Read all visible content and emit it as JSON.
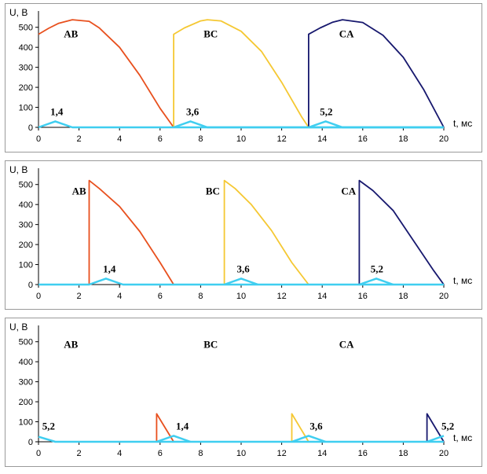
{
  "chart_data": [
    {
      "type": "line",
      "ylabel": "U, В",
      "xlabel": "t, мс",
      "xlim": [
        0,
        20
      ],
      "ylim": [
        0,
        550
      ],
      "xticks": [
        "0",
        "2",
        "4",
        "6",
        "8",
        "10",
        "12",
        "14",
        "16",
        "18",
        "20"
      ],
      "yticks": [
        "0",
        "100",
        "200",
        "300",
        "400",
        "500"
      ],
      "grid": false,
      "series": [
        {
          "name": "AB",
          "color": "#e8501e",
          "x": [
            0,
            0.5,
            1,
            1.67,
            2.5,
            3,
            4,
            5,
            6,
            6.67
          ],
          "y": [
            465,
            495,
            520,
            538,
            530,
            497,
            400,
            260,
            95,
            0
          ]
        },
        {
          "name": "BC",
          "color": "#f5c833",
          "x": [
            6.67,
            6.67,
            7.2,
            8,
            8.33,
            9,
            10,
            11,
            12,
            13,
            13.33
          ],
          "y": [
            0,
            465,
            497,
            532,
            538,
            532,
            480,
            380,
            225,
            50,
            0
          ]
        },
        {
          "name": "CA",
          "color": "#17186e",
          "x": [
            13.33,
            13.33,
            13.9,
            14.5,
            15,
            16,
            17,
            18,
            19,
            20
          ],
          "y": [
            0,
            465,
            497,
            525,
            538,
            524,
            460,
            350,
            190,
            0
          ]
        },
        {
          "name": "",
          "color": "#3fcef0",
          "x": [
            0,
            0.83,
            1.67,
            2,
            20
          ],
          "y": [
            0,
            30,
            0,
            0,
            0
          ]
        },
        {
          "name": "",
          "color": "#3fcef0",
          "x": [
            6.67,
            7.5,
            8.33,
            20
          ],
          "y": [
            0,
            30,
            0,
            0
          ]
        },
        {
          "name": "",
          "color": "#3fcef0",
          "x": [
            13.33,
            14.17,
            15,
            20
          ],
          "y": [
            0,
            30,
            0,
            0
          ]
        }
      ],
      "annotations": [
        {
          "text": "AB",
          "x": 1.6,
          "y": 450
        },
        {
          "text": "BC",
          "x": 8.5,
          "y": 450
        },
        {
          "text": "CA",
          "x": 15.2,
          "y": 450
        },
        {
          "text": "1,4",
          "x": 0.9,
          "y": 60
        },
        {
          "text": "3,6",
          "x": 7.6,
          "y": 60
        },
        {
          "text": "5,2",
          "x": 14.2,
          "y": 60
        }
      ]
    },
    {
      "type": "line",
      "ylabel": "U, В",
      "xlabel": "t, мс",
      "xlim": [
        0,
        20
      ],
      "ylim": [
        0,
        550
      ],
      "xticks": [
        "0",
        "2",
        "4",
        "6",
        "8",
        "10",
        "12",
        "14",
        "16",
        "18",
        "20"
      ],
      "yticks": [
        "0",
        "100",
        "200",
        "300",
        "400",
        "500"
      ],
      "grid": false,
      "series": [
        {
          "name": "AB",
          "color": "#e8501e",
          "x": [
            2.5,
            2.5,
            3,
            4,
            5,
            6,
            6.67
          ],
          "y": [
            0,
            520,
            480,
            390,
            265,
            110,
            0
          ]
        },
        {
          "name": "BC",
          "color": "#f5c833",
          "x": [
            9.17,
            9.17,
            9.7,
            10.5,
            11.5,
            12.5,
            13.33
          ],
          "y": [
            0,
            520,
            480,
            400,
            270,
            110,
            0
          ]
        },
        {
          "name": "CA",
          "color": "#17186e",
          "x": [
            15.83,
            15.83,
            16.5,
            17.5,
            18.5,
            19.5,
            20
          ],
          "y": [
            0,
            520,
            470,
            370,
            220,
            70,
            0
          ]
        },
        {
          "name": "",
          "color": "#3fcef0",
          "x": [
            0,
            2.5,
            3.33,
            4.17,
            20
          ],
          "y": [
            0,
            0,
            30,
            0,
            0
          ]
        },
        {
          "name": "",
          "color": "#3fcef0",
          "x": [
            9.17,
            10,
            10.83
          ],
          "y": [
            0,
            30,
            0
          ]
        },
        {
          "name": "",
          "color": "#3fcef0",
          "x": [
            15.83,
            16.67,
            17.5
          ],
          "y": [
            0,
            30,
            0
          ]
        }
      ],
      "annotations": [
        {
          "text": "AB",
          "x": 2,
          "y": 450
        },
        {
          "text": "BC",
          "x": 8.6,
          "y": 450
        },
        {
          "text": "CA",
          "x": 15.3,
          "y": 450
        },
        {
          "text": "1,4",
          "x": 3.5,
          "y": 60
        },
        {
          "text": "3,6",
          "x": 10.1,
          "y": 60
        },
        {
          "text": "5,2",
          "x": 16.7,
          "y": 60
        }
      ]
    },
    {
      "type": "line",
      "ylabel": "U, В",
      "xlabel": "t, мс",
      "xlim": [
        0,
        20
      ],
      "ylim": [
        0,
        550
      ],
      "xticks": [
        "0",
        "2",
        "4",
        "6",
        "8",
        "10",
        "12",
        "14",
        "16",
        "18",
        "20"
      ],
      "yticks": [
        "0",
        "100",
        "200",
        "300",
        "400",
        "500"
      ],
      "grid": false,
      "series": [
        {
          "name": "AB",
          "color": "#e8501e",
          "x": [
            5.83,
            5.83,
            6.67
          ],
          "y": [
            0,
            140,
            0
          ]
        },
        {
          "name": "BC",
          "color": "#f5c833",
          "x": [
            12.5,
            12.5,
            13.33
          ],
          "y": [
            0,
            140,
            0
          ]
        },
        {
          "name": "CA",
          "color": "#17186e",
          "x": [
            19.17,
            19.17,
            20
          ],
          "y": [
            0,
            140,
            0
          ]
        },
        {
          "name": "",
          "color": "#3fcef0",
          "x": [
            0,
            0.83,
            20
          ],
          "y": [
            25,
            0,
            0
          ]
        },
        {
          "name": "",
          "color": "#3fcef0",
          "x": [
            5.83,
            6.67,
            7.5
          ],
          "y": [
            0,
            30,
            0
          ]
        },
        {
          "name": "",
          "color": "#3fcef0",
          "x": [
            12.5,
            13.33,
            14.17
          ],
          "y": [
            0,
            30,
            0
          ]
        },
        {
          "name": "",
          "color": "#3fcef0",
          "x": [
            19.17,
            20
          ],
          "y": [
            0,
            30
          ]
        }
      ],
      "annotations": [
        {
          "text": "AB",
          "x": 1.6,
          "y": 470
        },
        {
          "text": "BC",
          "x": 8.5,
          "y": 470
        },
        {
          "text": "CA",
          "x": 15.2,
          "y": 470
        },
        {
          "text": "5,2",
          "x": 0.5,
          "y": 60
        },
        {
          "text": "1,4",
          "x": 7.1,
          "y": 60
        },
        {
          "text": "3,6",
          "x": 13.7,
          "y": 60
        },
        {
          "text": "5,2",
          "x": 20.2,
          "y": 60
        }
      ]
    }
  ]
}
